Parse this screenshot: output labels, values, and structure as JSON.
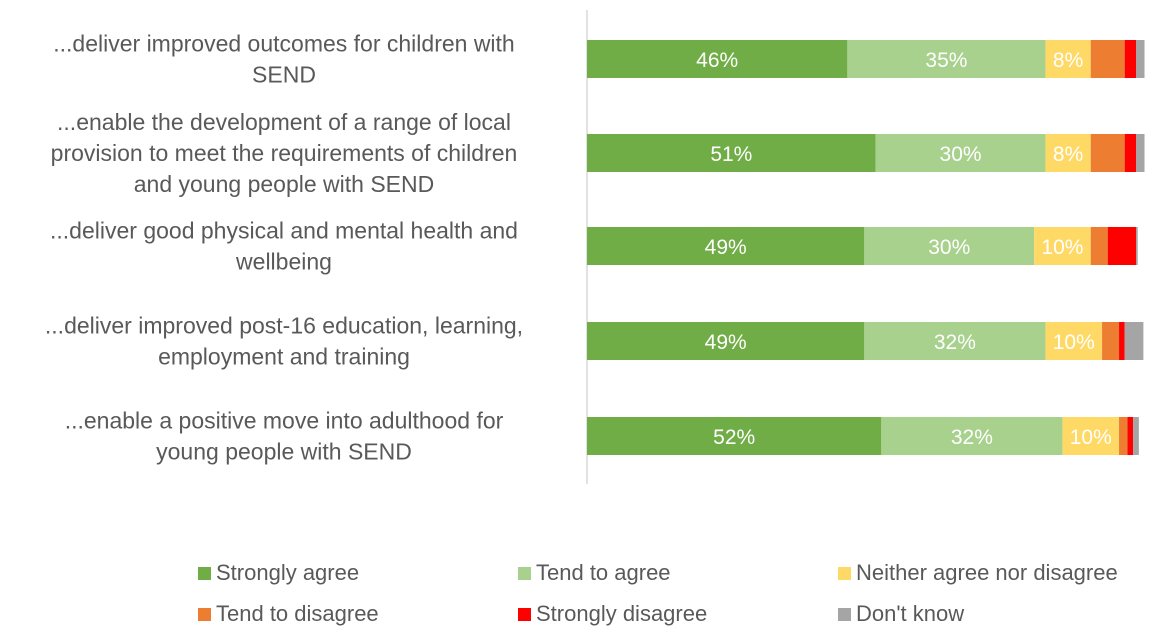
{
  "chart_data": {
    "type": "bar",
    "orientation": "horizontal",
    "stacked": true,
    "categories": [
      "...deliver improved outcomes for children with SEND",
      "...enable the development of a range of local provision to meet the requirements of children and young people with SEND",
      "...deliver good physical and mental health and wellbeing",
      "...deliver improved post-16 education, learning, employment and training",
      "...enable a positive move into adulthood for young people with SEND"
    ],
    "category_lines": [
      [
        "...deliver improved outcomes for children with",
        "SEND"
      ],
      [
        "...enable the development of a range of local",
        "provision to meet the requirements of children",
        "and young people with SEND"
      ],
      [
        "...deliver good physical and mental health and",
        "wellbeing"
      ],
      [
        "...deliver improved post-16 education, learning,",
        "employment and training"
      ],
      [
        "...enable a positive move into adulthood for",
        "young people with SEND"
      ]
    ],
    "series": [
      {
        "name": "Strongly agree",
        "color": "#70ad47",
        "values": [
          46,
          51,
          49,
          49,
          52
        ],
        "labels": [
          "46%",
          "51%",
          "49%",
          "49%",
          "52%"
        ]
      },
      {
        "name": "Tend to agree",
        "color": "#a9d18e",
        "values": [
          35,
          30,
          30,
          32,
          32
        ],
        "labels": [
          "35%",
          "30%",
          "30%",
          "32%",
          "32%"
        ]
      },
      {
        "name": "Neither agree nor disagree",
        "color": "#ffd966",
        "values": [
          8,
          8,
          10,
          10,
          10
        ],
        "labels": [
          "8%",
          "8%",
          "10%",
          "10%",
          "10%"
        ]
      },
      {
        "name": "Tend to disagree",
        "color": "#ed7d31",
        "values": [
          6,
          6,
          3,
          3,
          1.5
        ],
        "labels": [
          "",
          "",
          "",
          "",
          ""
        ]
      },
      {
        "name": "Strongly disagree",
        "color": "#ff0000",
        "values": [
          2,
          2,
          5,
          1,
          1
        ],
        "labels": [
          "",
          "",
          "",
          "",
          ""
        ]
      },
      {
        "name": "Don't know",
        "color": "#a5a5a5",
        "values": [
          1.5,
          1.5,
          0.3,
          3.3,
          1
        ],
        "labels": [
          "",
          "",
          "",
          "",
          ""
        ]
      }
    ],
    "xlim": [
      0,
      100
    ],
    "grid": false,
    "legend_position": "bottom"
  }
}
